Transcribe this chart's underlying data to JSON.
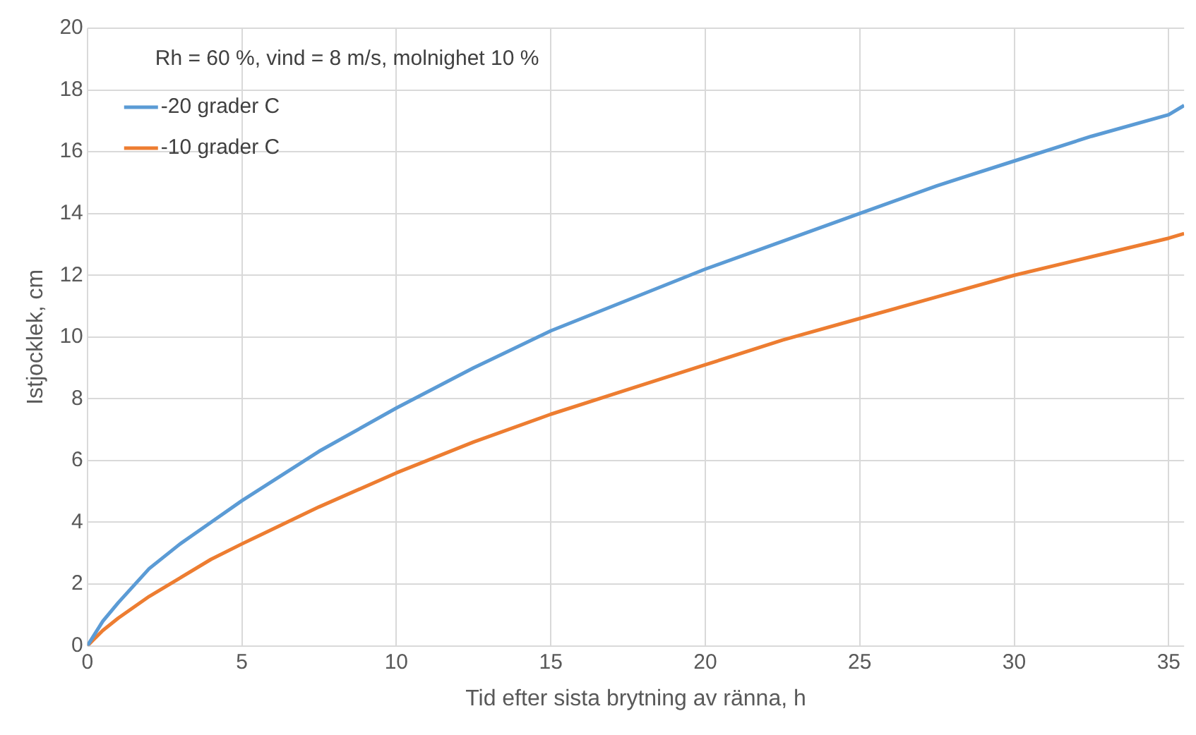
{
  "chart_data": {
    "type": "line",
    "xlabel": "Tid efter sista brytning av ränna, h",
    "ylabel": "Istjocklek, cm",
    "annotations": [
      "Rh = 60 %, vind = 8 m/s, molnighet 10 %"
    ],
    "x": [
      0,
      0.5,
      1,
      2,
      3,
      4,
      5,
      7.5,
      10,
      12.5,
      15,
      17.5,
      20,
      22.5,
      25,
      27.5,
      30,
      32.5,
      35,
      35.5
    ],
    "series": [
      {
        "name": "-20 grader C",
        "color": "#5b9bd5",
        "values": [
          0,
          0.8,
          1.4,
          2.5,
          3.3,
          4.0,
          4.7,
          6.3,
          7.7,
          9.0,
          10.2,
          11.2,
          12.2,
          13.1,
          14.0,
          14.9,
          15.7,
          16.5,
          17.2,
          17.5
        ]
      },
      {
        "name": "-10 grader C",
        "color": "#ed7d31",
        "values": [
          0,
          0.5,
          0.9,
          1.6,
          2.2,
          2.8,
          3.3,
          4.5,
          5.6,
          6.6,
          7.5,
          8.3,
          9.1,
          9.9,
          10.6,
          11.3,
          12.0,
          12.6,
          13.2,
          13.35
        ]
      }
    ],
    "xlim": [
      0,
      35.5
    ],
    "xticks": [
      0,
      5,
      10,
      15,
      20,
      25,
      30,
      35
    ],
    "ylim": [
      0,
      20
    ],
    "yticks": [
      0,
      2,
      4,
      6,
      8,
      10,
      12,
      14,
      16,
      18,
      20
    ],
    "grid": true,
    "legend": "top left",
    "marker": "none",
    "line_style": "solid"
  }
}
